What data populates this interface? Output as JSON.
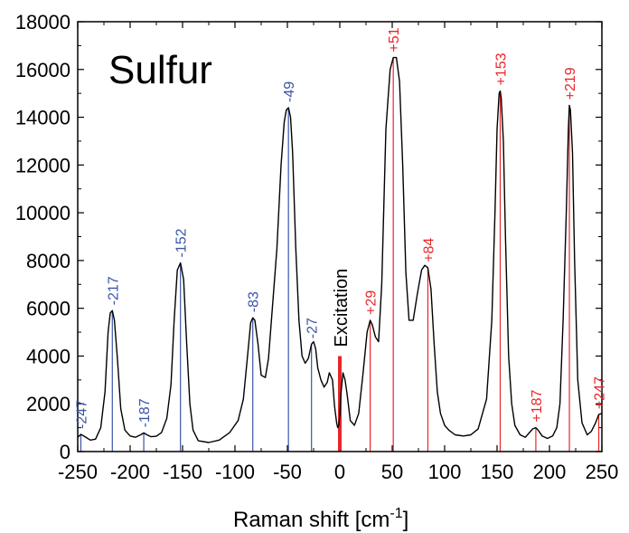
{
  "chart_data": {
    "type": "line",
    "title": "Sulfur",
    "xlabel_main": "Raman shift [cm",
    "xlabel_sup": "-1",
    "xlabel_close": "]",
    "ylabel": "",
    "xlim": [
      -250,
      250
    ],
    "ylim": [
      0,
      18000
    ],
    "x_ticks": [
      -250,
      -200,
      -150,
      -100,
      -50,
      0,
      50,
      100,
      150,
      200,
      250
    ],
    "x_tick_labels": [
      "-250",
      "-200",
      "-150",
      "-100",
      "-50",
      "0",
      "50",
      "100",
      "150",
      "200",
      "250"
    ],
    "y_ticks": [
      0,
      2000,
      4000,
      6000,
      8000,
      10000,
      12000,
      14000,
      16000,
      18000
    ],
    "y_tick_labels": [
      "0",
      "2000",
      "4000",
      "6000",
      "8000",
      "10000",
      "12000",
      "14000",
      "16000",
      "18000"
    ],
    "colors": {
      "curve": "#000000",
      "stokes": "#3a54a4",
      "antistokes": "#e8262a",
      "excitation": "#e8262a"
    },
    "excitation": {
      "x": 0,
      "height": 4000,
      "label": "Excitation"
    },
    "peaks": [
      {
        "x": -247,
        "label": "-247",
        "side": "stokes"
      },
      {
        "x": -217,
        "label": "-217",
        "side": "stokes"
      },
      {
        "x": -187,
        "label": "-187",
        "side": "stokes"
      },
      {
        "x": -152,
        "label": "-152",
        "side": "stokes"
      },
      {
        "x": -83,
        "label": "-83",
        "side": "stokes"
      },
      {
        "x": -49,
        "label": "-49",
        "side": "stokes"
      },
      {
        "x": -27,
        "label": "-27",
        "side": "stokes"
      },
      {
        "x": 29,
        "label": "+29",
        "side": "antistokes"
      },
      {
        "x": 51,
        "label": "+51",
        "side": "antistokes"
      },
      {
        "x": 84,
        "label": "+84",
        "side": "antistokes"
      },
      {
        "x": 153,
        "label": "+153",
        "side": "antistokes"
      },
      {
        "x": 187,
        "label": "+187",
        "side": "antistokes"
      },
      {
        "x": 219,
        "label": "+219",
        "side": "antistokes"
      },
      {
        "x": 247,
        "label": "+247",
        "side": "antistokes"
      }
    ],
    "series": [
      {
        "x": [
          -250,
          -247,
          -243,
          -238,
          -233,
          -228,
          -224,
          -221,
          -219,
          -217,
          -215,
          -212,
          -209,
          -205,
          -200,
          -195,
          -190,
          -187,
          -184,
          -180,
          -175,
          -170,
          -165,
          -161,
          -158,
          -155,
          -152,
          -149,
          -146,
          -143,
          -140,
          -135,
          -125,
          -115,
          -105,
          -97,
          -92,
          -88,
          -85,
          -83,
          -81,
          -78,
          -75,
          -71,
          -68,
          -60,
          -56,
          -53,
          -51,
          -49,
          -47,
          -45,
          -42,
          -39,
          -36,
          -33,
          -30,
          -27,
          -25,
          -23,
          -21,
          -18,
          -15,
          -12,
          -10,
          -7,
          -5,
          -3,
          -2,
          -1,
          0,
          1,
          3,
          5,
          7,
          10,
          14,
          18,
          22,
          26,
          29,
          31,
          34,
          37,
          40,
          44,
          48,
          51,
          54,
          57,
          60,
          63,
          66,
          70,
          74,
          78,
          81,
          84,
          87,
          90,
          93,
          96,
          100,
          104,
          110,
          118,
          125,
          132,
          140,
          145,
          148,
          150,
          152,
          153,
          154,
          156,
          158,
          161,
          164,
          167,
          172,
          177,
          181,
          184,
          187,
          190,
          193,
          198,
          203,
          207,
          210,
          213,
          216,
          218,
          219,
          220,
          222,
          224,
          227,
          231,
          236,
          240,
          244,
          247,
          250
        ],
        "values": [
          600,
          720,
          620,
          480,
          520,
          1000,
          2500,
          5000,
          5800,
          5900,
          5500,
          3800,
          1800,
          900,
          650,
          600,
          700,
          780,
          700,
          620,
          640,
          800,
          1400,
          2800,
          5500,
          7600,
          7900,
          7200,
          4500,
          2000,
          900,
          450,
          380,
          480,
          800,
          1300,
          2200,
          4000,
          5400,
          5600,
          5500,
          4500,
          3200,
          3100,
          3900,
          8500,
          12000,
          13800,
          14300,
          14400,
          14000,
          12500,
          8500,
          5500,
          4000,
          3700,
          3900,
          4500,
          4600,
          4300,
          3500,
          3000,
          2700,
          2900,
          3300,
          3000,
          1900,
          1200,
          1000,
          1100,
          1500,
          2400,
          3300,
          3000,
          2400,
          1300,
          1100,
          1600,
          3200,
          5000,
          5500,
          5300,
          4800,
          4600,
          7000,
          13500,
          16000,
          16500,
          16500,
          15500,
          12000,
          7500,
          5500,
          5500,
          6600,
          7600,
          7800,
          7700,
          6800,
          4500,
          2500,
          1600,
          1100,
          900,
          700,
          650,
          700,
          950,
          2200,
          5500,
          10000,
          13500,
          15000,
          15100,
          14800,
          13000,
          9000,
          4000,
          2000,
          1100,
          700,
          600,
          800,
          950,
          1000,
          850,
          650,
          550,
          650,
          1000,
          2000,
          5500,
          10000,
          13500,
          14500,
          14300,
          12500,
          8000,
          3000,
          1200,
          700,
          850,
          1200,
          1550,
          1600
        ]
      }
    ]
  }
}
